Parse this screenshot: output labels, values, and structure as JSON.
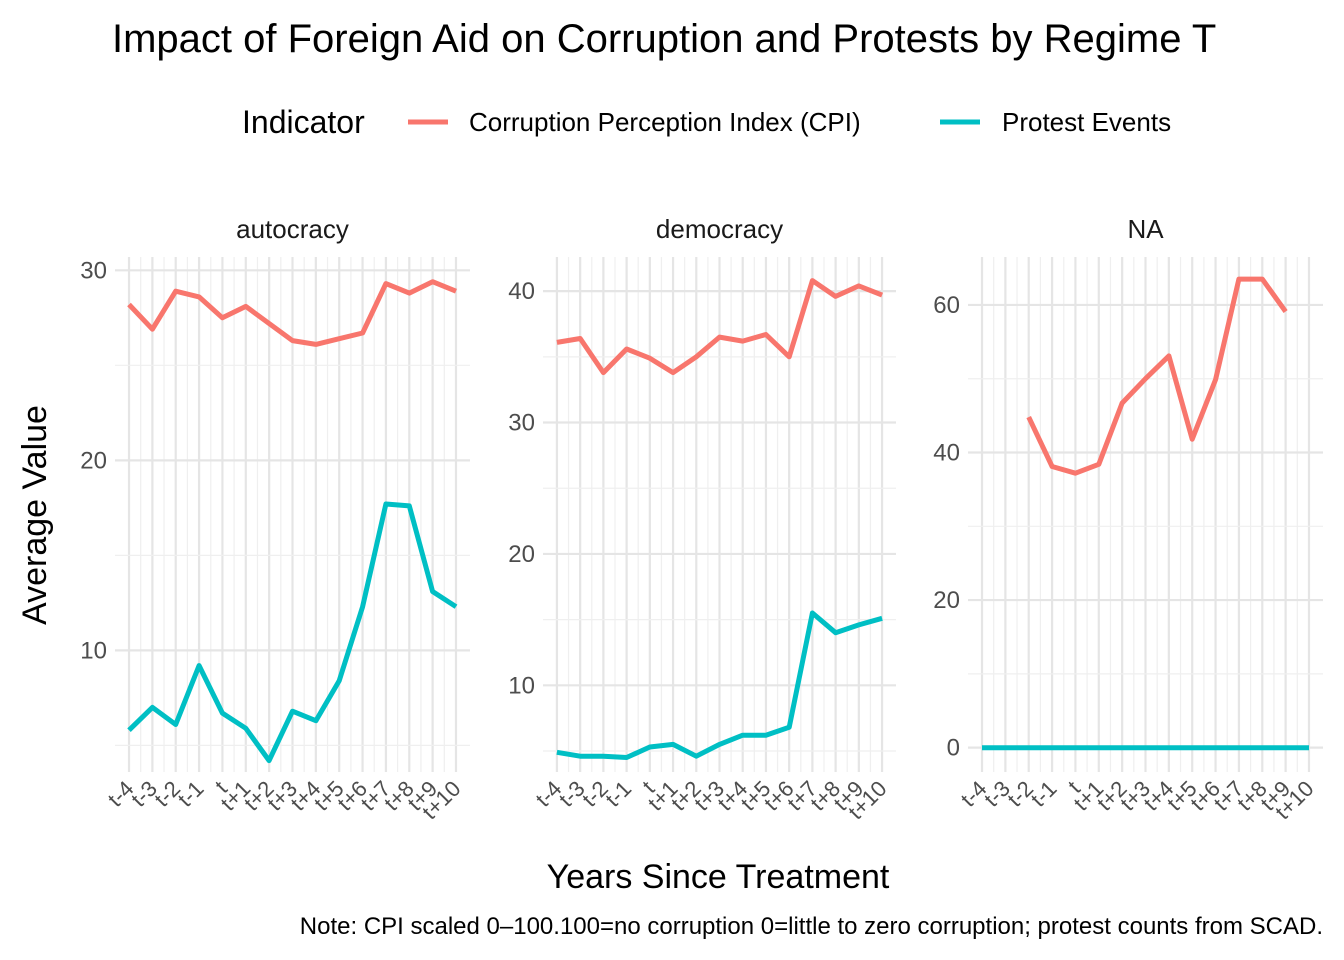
{
  "chart_data": {
    "type": "line",
    "title": "Impact of Foreign Aid on Corruption and Protests by Regime T",
    "xlabel": "Years Since Treatment",
    "ylabel": "Average Value",
    "caption": "Note: CPI scaled 0–100.100=no corruption 0=little to zero corruption; protest counts from SCAD.",
    "legend": {
      "title": "Indicator",
      "position": "top",
      "items": [
        {
          "label": "Corruption Perception Index (CPI)",
          "color": "#F8766D"
        },
        {
          "label": "Protest Events",
          "color": "#00BFC4"
        }
      ]
    },
    "categories": [
      "t-4",
      "t-3",
      "t-2",
      "t-1",
      "t",
      "t+1",
      "t+2",
      "t+3",
      "t+4",
      "t+5",
      "t+6",
      "t+7",
      "t+8",
      "t+9",
      "t+10"
    ],
    "x_tick_labels": [
      "t-4",
      "t-3",
      "t-2",
      "t-1",
      "t",
      "t+1",
      "t+2",
      "t+3",
      "t+4",
      "t+5",
      "t+6",
      "t+7",
      "t+8",
      "t+9",
      "t+10"
    ],
    "x_range": [
      -4.6,
      10.6
    ],
    "grid": true,
    "panels": [
      {
        "label": "autocracy",
        "ylim": [
          3.6,
          30.7
        ],
        "y_ticks": [
          10,
          20,
          30
        ],
        "series": [
          {
            "name": "Corruption Perception Index (CPI)",
            "color": "#F8766D",
            "x": [
              -4,
              -3,
              -2,
              -1,
              0,
              1,
              2,
              3,
              4,
              5,
              6,
              7,
              8,
              9,
              10
            ],
            "values": [
              28.2,
              26.9,
              28.9,
              28.6,
              27.5,
              28.1,
              27.2,
              26.3,
              26.1,
              26.4,
              26.7,
              29.3,
              28.8,
              29.4,
              28.9
            ]
          },
          {
            "name": "Protest Events",
            "color": "#00BFC4",
            "x": [
              -4,
              -3,
              -2,
              -1,
              0,
              1,
              2,
              3,
              4,
              5,
              6,
              7,
              8,
              9,
              10
            ],
            "values": [
              5.8,
              7.0,
              6.1,
              9.2,
              6.7,
              5.9,
              4.2,
              6.8,
              6.3,
              8.4,
              12.3,
              17.7,
              17.6,
              13.1,
              12.3
            ]
          }
        ]
      },
      {
        "label": "democracy",
        "ylim": [
          3.4,
          42.6
        ],
        "y_ticks": [
          10,
          20,
          30,
          40
        ],
        "series": [
          {
            "name": "Corruption Perception Index (CPI)",
            "color": "#F8766D",
            "x": [
              -4,
              -3,
              -2,
              -1,
              0,
              1,
              2,
              3,
              4,
              5,
              6,
              7,
              8,
              9,
              10
            ],
            "values": [
              36.1,
              36.4,
              33.8,
              35.6,
              34.9,
              33.8,
              35.0,
              36.5,
              36.2,
              36.7,
              35.0,
              40.8,
              39.6,
              40.4,
              39.7
            ]
          },
          {
            "name": "Protest Events",
            "color": "#00BFC4",
            "x": [
              -4,
              -3,
              -2,
              -1,
              0,
              1,
              2,
              3,
              4,
              5,
              6,
              7,
              8,
              9,
              10
            ],
            "values": [
              4.9,
              4.6,
              4.6,
              4.5,
              5.3,
              5.5,
              4.6,
              5.5,
              6.2,
              6.2,
              6.8,
              15.5,
              14.0,
              14.6,
              15.1
            ]
          }
        ]
      },
      {
        "label": "NA",
        "ylim": [
          -3.3,
          66.5
        ],
        "y_ticks": [
          0,
          20,
          40,
          60
        ],
        "series": [
          {
            "name": "Corruption Perception Index (CPI)",
            "color": "#F8766D",
            "x": [
              -2,
              -1,
              0,
              1,
              2,
              3,
              4,
              5,
              6,
              7,
              8,
              9
            ],
            "values": [
              44.8,
              38.1,
              37.2,
              38.4,
              46.7,
              50.0,
              53.1,
              41.8,
              49.9,
              63.5,
              63.5,
              59.1
            ]
          },
          {
            "name": "Protest Events",
            "color": "#00BFC4",
            "x": [
              -4,
              -3,
              -2,
              -1,
              0,
              1,
              2,
              3,
              4,
              5,
              6,
              7,
              8,
              9,
              10
            ],
            "values": [
              0,
              0,
              0,
              0,
              0,
              0,
              0,
              0,
              0,
              0,
              0,
              0,
              0,
              0,
              0
            ]
          }
        ]
      }
    ]
  }
}
